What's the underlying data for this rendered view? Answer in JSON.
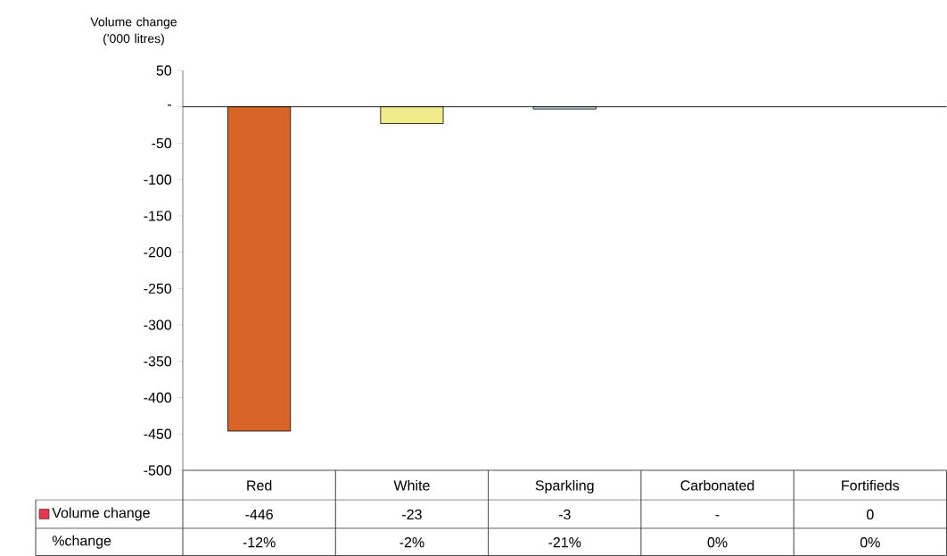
{
  "chart_data": {
    "type": "bar",
    "ylabel": "Volume change ('000 litres)",
    "categories": [
      "Red",
      "White",
      "Sparkling",
      "Carbonated",
      "Fortifieds"
    ],
    "series": [
      {
        "name": "Volume change",
        "color": "#e8344c",
        "colors": [
          "#d86427",
          "#f0ec8c",
          "#c8dce0",
          "#ffffff",
          "#404040"
        ],
        "values": [
          -446,
          -23,
          -3,
          0,
          0
        ],
        "value_labels": [
          "-446",
          "-23",
          "-3",
          "-",
          "0"
        ]
      }
    ],
    "ylim": [
      -500,
      50
    ],
    "yticks": [
      -500,
      -450,
      -400,
      -350,
      -300,
      -250,
      -200,
      -150,
      -100,
      -50,
      {
        "value": 0,
        "label": "-"
      },
      50
    ],
    "legend": "bottom",
    "annotations": [
      "%change",
      "-12%",
      "-2%",
      "-21%",
      "0%",
      "0%"
    ]
  }
}
